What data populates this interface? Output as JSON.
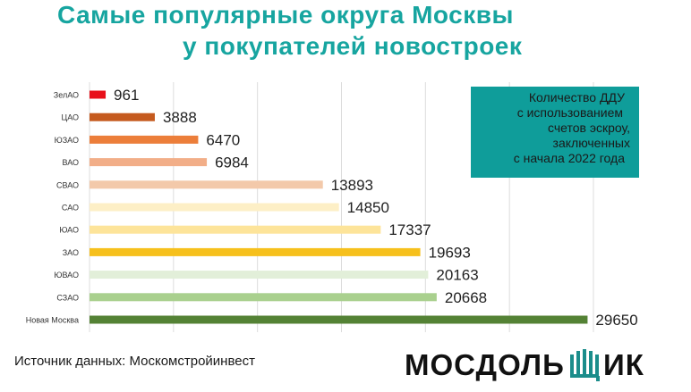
{
  "title_line1": "Самые популярные округа Москвы",
  "title_line2": "у покупателей новостроек",
  "legend_lines": [
    "Количество ДДУ",
    "с использованием",
    "счетов эскроу,",
    "заключенных",
    "с начала 2022 года"
  ],
  "source": "Источник данных: Москомстройинвест",
  "logo": {
    "left": "МОСДОЛЬ",
    "right": "ИК",
    "icon": "shchit-letter-logo-icon"
  },
  "colors": {
    "title": "#17a5a0",
    "legend_bg": "#0f9d9a",
    "grid": "#dcdcdc"
  },
  "chart_data": {
    "type": "bar",
    "orientation": "horizontal",
    "categories": [
      "ЗелАО",
      "ЦАО",
      "ЮЗАО",
      "ВАО",
      "СВАО",
      "САО",
      "ЮАО",
      "ЗАО",
      "ЮВАО",
      "СЗАО",
      "Новая Москва"
    ],
    "values": [
      961,
      3888,
      6470,
      6984,
      13893,
      14850,
      17337,
      19693,
      20163,
      20668,
      29650
    ],
    "labels": [
      "961",
      "3888",
      "6470",
      "6984",
      "13893",
      "14850",
      "17337",
      "19693",
      "20163",
      "20668",
      "29650"
    ],
    "colors": [
      "#e8101a",
      "#c55a1e",
      "#ec7e3a",
      "#f2ae88",
      "#f3c9aa",
      "#fdefc6",
      "#fde49a",
      "#f6c01c",
      "#e2efd9",
      "#a9d08e",
      "#548235"
    ],
    "xlim": [
      0,
      30000
    ],
    "grid": true,
    "legend": "top-right"
  }
}
